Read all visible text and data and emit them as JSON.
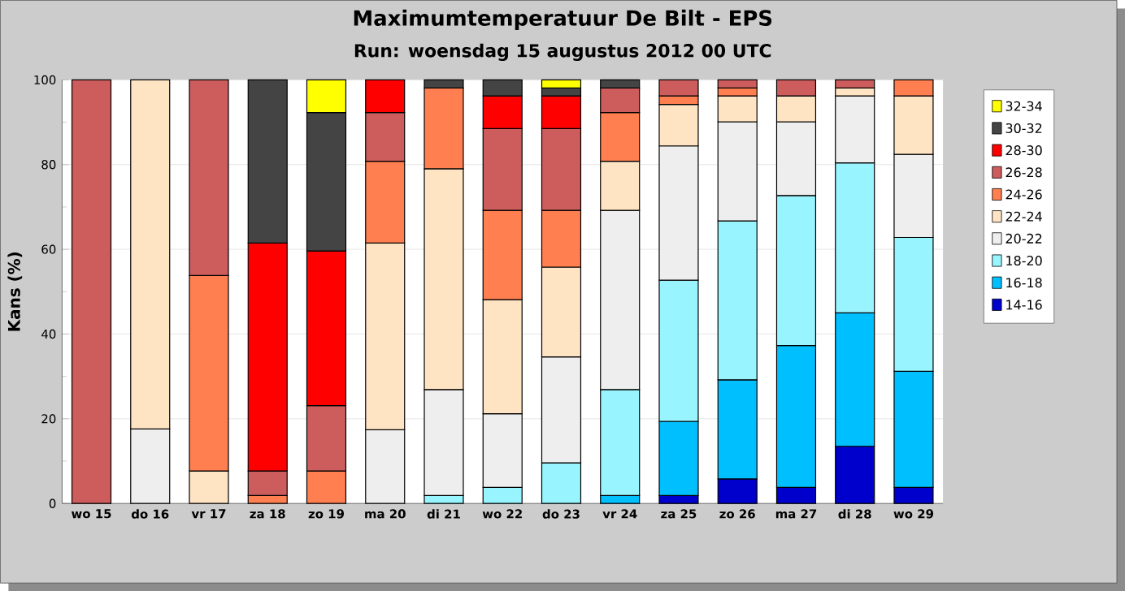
{
  "chart_data": {
    "type": "bar",
    "title": "Maximumtemperatuur De Bilt - EPS",
    "subtitle": "Run: woensdag 15 augustus 2012   00 UTC",
    "ylabel": "Kans (%)",
    "categories": [
      "wo 15",
      "do 16",
      "vr 17",
      "za 18",
      "zo 19",
      "ma 20",
      "di 21",
      "wo 22",
      "do 23",
      "vr 24",
      "za 25",
      "zo 26",
      "ma 27",
      "di 28",
      "wo 29"
    ],
    "stacked": true,
    "ylim": [
      0,
      100
    ],
    "yticks": [
      0,
      20,
      40,
      60,
      80,
      100
    ],
    "grid": "y",
    "legend": "right",
    "series": [
      {
        "name": "14-16",
        "color": "#0000cd",
        "values": [
          null,
          null,
          null,
          null,
          null,
          null,
          null,
          null,
          null,
          null,
          1.9,
          5.8,
          3.8,
          13.5,
          3.8
        ]
      },
      {
        "name": "16-18",
        "color": "#00bfff",
        "values": [
          null,
          null,
          null,
          null,
          null,
          null,
          null,
          null,
          null,
          1.9,
          17.5,
          23.4,
          33.5,
          31.5,
          27.4
        ]
      },
      {
        "name": "18-20",
        "color": "#98f5ff",
        "values": [
          null,
          null,
          null,
          null,
          null,
          null,
          1.9,
          3.8,
          9.6,
          25.0,
          33.3,
          37.5,
          35.4,
          35.4,
          31.6
        ]
      },
      {
        "name": "20-22",
        "color": "#eeeeee",
        "values": [
          null,
          17.6,
          null,
          null,
          null,
          17.4,
          25.0,
          17.4,
          25.0,
          42.3,
          31.7,
          23.4,
          17.4,
          15.8,
          19.6
        ]
      },
      {
        "name": "22-24",
        "color": "#ffe4c4",
        "values": [
          null,
          82.4,
          7.7,
          null,
          null,
          44.1,
          52.1,
          26.9,
          21.2,
          11.6,
          9.8,
          6.1,
          6.1,
          1.9,
          13.8
        ]
      },
      {
        "name": "24-26",
        "color": "#ff7f50",
        "values": [
          null,
          null,
          46.1,
          1.9,
          7.7,
          19.3,
          19.1,
          21.1,
          13.4,
          11.5,
          2.0,
          1.9,
          null,
          null,
          3.8
        ]
      },
      {
        "name": "26-28",
        "color": "#cd5c5c",
        "values": [
          100,
          null,
          46.2,
          5.8,
          15.4,
          11.5,
          null,
          19.3,
          19.3,
          5.8,
          3.8,
          1.9,
          3.8,
          1.9,
          null
        ]
      },
      {
        "name": "28-30",
        "color": "#ff0000",
        "values": [
          null,
          null,
          null,
          53.8,
          36.5,
          7.7,
          null,
          7.7,
          7.7,
          null,
          null,
          null,
          null,
          null,
          null
        ]
      },
      {
        "name": "30-32",
        "color": "#444444",
        "values": [
          null,
          null,
          null,
          38.5,
          32.7,
          null,
          1.9,
          3.8,
          1.9,
          1.9,
          null,
          null,
          null,
          null,
          null
        ]
      },
      {
        "name": "32-34",
        "color": "#ffff00",
        "values": [
          null,
          null,
          null,
          null,
          7.7,
          null,
          null,
          null,
          1.9,
          null,
          null,
          null,
          null,
          null,
          null
        ]
      }
    ]
  }
}
